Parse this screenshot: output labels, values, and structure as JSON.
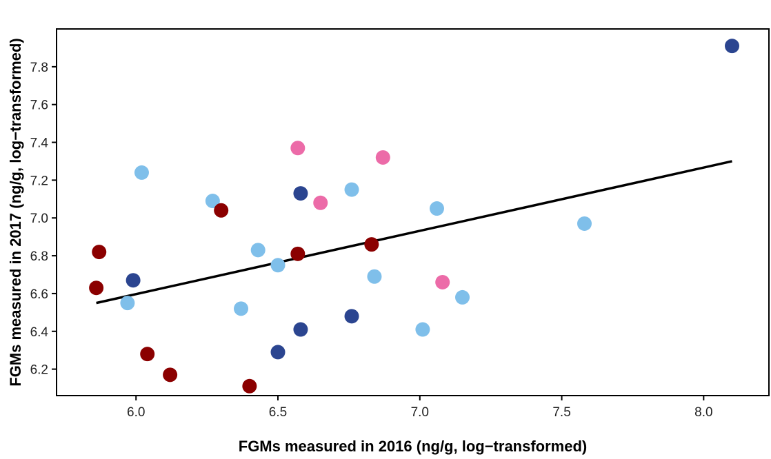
{
  "chart_data": {
    "type": "scatter",
    "title": "",
    "xlabel": "FGMs measured in 2016 (ng/g, log−transformed)",
    "ylabel": "FGMs measured in 2017 (ng/g, log−transformed)",
    "xlim": [
      5.72,
      8.23
    ],
    "ylim": [
      6.06,
      8.0
    ],
    "x_ticks": [
      6.0,
      6.5,
      7.0,
      7.5,
      8.0
    ],
    "x_tick_labels": [
      "6.0",
      "6.5",
      "7.0",
      "7.5",
      "8.0"
    ],
    "y_ticks": [
      6.2,
      6.4,
      6.6,
      6.8,
      7.0,
      7.2,
      7.4,
      7.6,
      7.8
    ],
    "y_tick_labels": [
      "6.2",
      "6.4",
      "6.6",
      "6.8",
      "7.0",
      "7.2",
      "7.4",
      "7.6",
      "7.8"
    ],
    "grid": false,
    "legend": "none",
    "colors": {
      "light_blue": "#7fbfea",
      "dark_blue": "#2b4590",
      "dark_red": "#8b0000",
      "pink": "#ec6ba8",
      "line": "#000000"
    },
    "series": [
      {
        "color": "light_blue",
        "points": [
          [
            6.02,
            7.24
          ],
          [
            6.27,
            7.09
          ],
          [
            5.97,
            6.55
          ],
          [
            6.43,
            6.83
          ],
          [
            6.5,
            6.75
          ],
          [
            6.37,
            6.52
          ],
          [
            6.76,
            7.15
          ],
          [
            6.84,
            6.69
          ],
          [
            7.06,
            7.05
          ],
          [
            7.01,
            6.41
          ],
          [
            7.15,
            6.58
          ],
          [
            7.58,
            6.97
          ]
        ]
      },
      {
        "color": "dark_blue",
        "points": [
          [
            5.99,
            6.67
          ],
          [
            6.58,
            7.13
          ],
          [
            6.5,
            6.29
          ],
          [
            6.58,
            6.41
          ],
          [
            6.76,
            6.48
          ],
          [
            8.1,
            7.91
          ]
        ]
      },
      {
        "color": "dark_red",
        "points": [
          [
            5.87,
            6.82
          ],
          [
            5.86,
            6.63
          ],
          [
            6.04,
            6.28
          ],
          [
            6.12,
            6.17
          ],
          [
            6.3,
            7.04
          ],
          [
            6.4,
            6.11
          ],
          [
            6.57,
            6.81
          ],
          [
            6.83,
            6.86
          ]
        ]
      },
      {
        "color": "pink",
        "points": [
          [
            6.57,
            7.37
          ],
          [
            6.65,
            7.08
          ],
          [
            6.87,
            7.32
          ],
          [
            7.08,
            6.66
          ]
        ]
      }
    ],
    "trend_line": {
      "x": [
        5.86,
        8.1
      ],
      "y": [
        6.55,
        7.3
      ]
    }
  }
}
